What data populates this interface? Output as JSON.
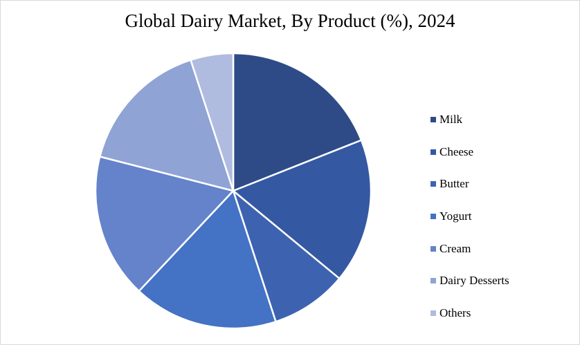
{
  "chart_data": {
    "type": "pie",
    "title": "Global Dairy Market, By Product (%), 2024",
    "categories": [
      "Milk",
      "Cheese",
      "Butter",
      "Yogurt",
      "Cream",
      "Dairy Desserts",
      "Others"
    ],
    "values": [
      19.0,
      17.0,
      9.0,
      17.0,
      17.0,
      16.0,
      5.0
    ],
    "colors": [
      "#2e4b87",
      "#3558a3",
      "#3d63b0",
      "#4472c4",
      "#6583cb",
      "#8fa3d4",
      "#b0bcdf"
    ],
    "start_angle": "12 o'clock",
    "direction": "clockwise",
    "legend_position": "right"
  }
}
